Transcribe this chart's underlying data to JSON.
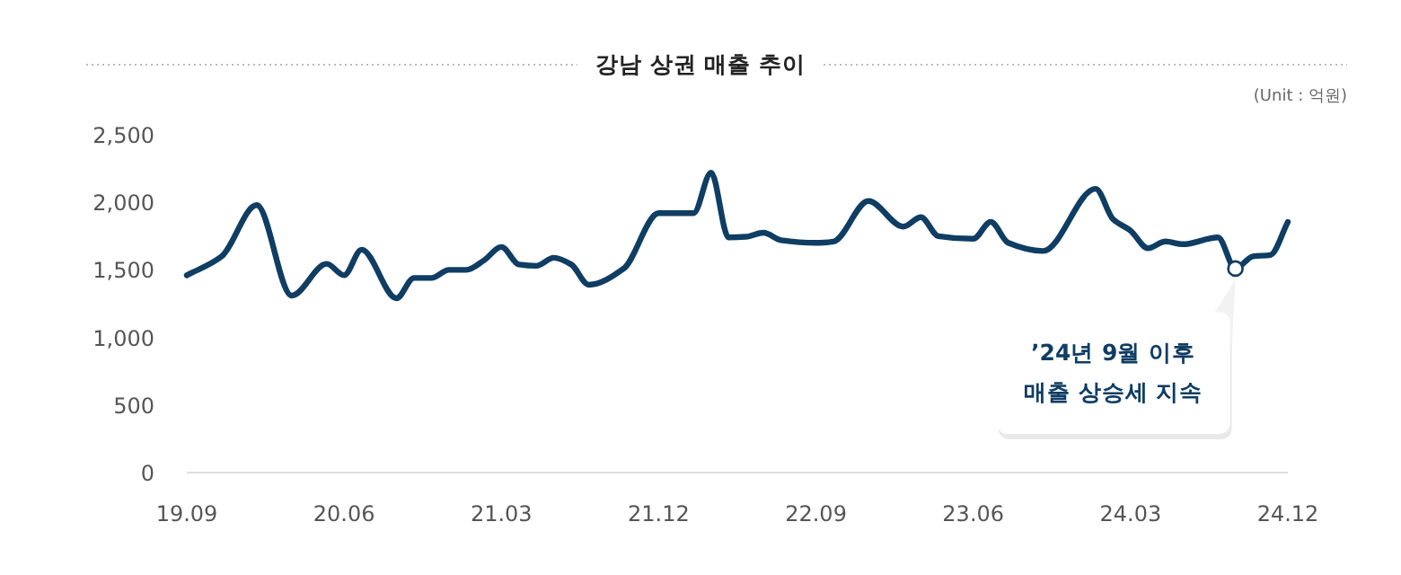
{
  "chart_data": {
    "type": "line",
    "title": "강남 상권 매출 추이",
    "x": [
      "2019-09",
      "2019-11",
      "2020-01",
      "2020-03",
      "2020-05",
      "2020-06",
      "2020-07",
      "2020-09",
      "2020-10",
      "2020-11",
      "2020-12",
      "2021-01",
      "2021-02",
      "2021-03",
      "2021-04",
      "2021-05",
      "2021-06",
      "2021-07",
      "2021-08",
      "2021-10",
      "2021-12",
      "2022-02",
      "2022-03",
      "2022-04",
      "2022-05",
      "2022-06",
      "2022-07",
      "2022-09",
      "2022-10",
      "2022-12",
      "2023-02",
      "2023-03",
      "2023-04",
      "2023-06",
      "2023-07",
      "2023-08",
      "2023-10",
      "2024-01",
      "2024-02",
      "2024-03",
      "2024-04",
      "2024-05",
      "2024-06",
      "2024-08",
      "2024-09",
      "2024-10",
      "2024-11",
      "2024-12"
    ],
    "series": [
      {
        "color": "#0f3d63",
        "values": [
          1460,
          1600,
          1980,
          1310,
          1545,
          1460,
          1650,
          1290,
          1440,
          1440,
          1500,
          1500,
          1570,
          1670,
          1540,
          1530,
          1590,
          1540,
          1390,
          1510,
          1920,
          1920,
          2220,
          1740,
          1745,
          1775,
          1720,
          1700,
          1710,
          2010,
          1820,
          1890,
          1750,
          1730,
          1855,
          1700,
          1640,
          2100,
          1875,
          1790,
          1660,
          1710,
          1690,
          1740,
          1510,
          1600,
          1610,
          1855
        ]
      }
    ],
    "xlim": [
      "2019-09",
      "2024-12"
    ],
    "xticks": [
      {
        "value": "2019-09",
        "label": "19.09"
      },
      {
        "value": "2020-06",
        "label": "20.06"
      },
      {
        "value": "2021-03",
        "label": "21.03"
      },
      {
        "value": "2021-12",
        "label": "21.12"
      },
      {
        "value": "2022-09",
        "label": "22.09"
      },
      {
        "value": "2023-06",
        "label": "23.06"
      },
      {
        "value": "2024-03",
        "label": "24.03"
      },
      {
        "value": "2024-12",
        "label": "24.12"
      }
    ],
    "ylim": [
      0,
      2500
    ],
    "yticks": [
      0,
      500,
      {
        "value": 1000,
        "label": "1,000"
      },
      {
        "value": 1500,
        "label": "1,500"
      },
      {
        "value": 2000,
        "label": "2,000"
      },
      {
        "value": 2500,
        "label": "2,500"
      }
    ],
    "annotations": [
      "(Unit : 억원)",
      {
        "text": "’24년 9월 이후\n매출 상승세 지속",
        "x": "2024-09",
        "y": 1510
      }
    ],
    "line_style": "solid",
    "marker": "none"
  }
}
